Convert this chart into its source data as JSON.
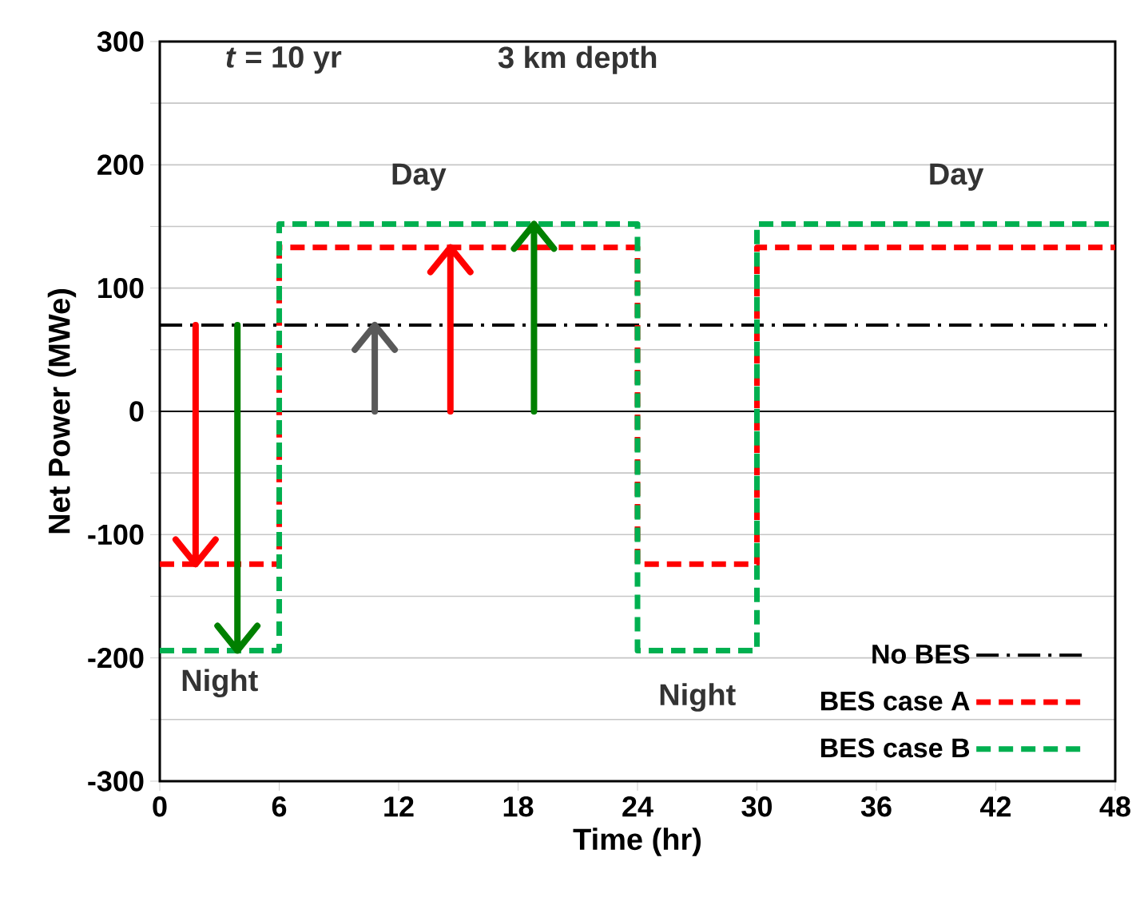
{
  "chart_data": {
    "type": "step",
    "xlabel": "Time (hr)",
    "ylabel": "Net Power (MWe)",
    "annotations": [
      "*t* = 10 yr",
      "3 km depth",
      "Day",
      "Day",
      {
        "text": "Night",
        "x": 3,
        "y": -194
      },
      "Night"
    ],
    "series": [
      {
        "name": "No BES",
        "type": "line",
        "color": "#000000",
        "line_style": "dashdot",
        "x": [
          0,
          48
        ],
        "values": [
          70,
          70
        ]
      },
      {
        "name": "BES case A",
        "color": "#ff0000",
        "line_style": "dashed",
        "x": [
          0,
          6,
          24,
          30,
          48
        ],
        "values": [
          -124,
          133,
          -124,
          133,
          133
        ]
      },
      {
        "name": "BES case B",
        "color": "#00b050",
        "line_style": "dashed",
        "x": [
          0,
          6,
          24,
          30,
          48
        ],
        "values": [
          -194,
          152,
          -194,
          152,
          152
        ]
      }
    ],
    "xlim": [
      0,
      48
    ],
    "xticks": [
      0,
      6,
      12,
      18,
      24,
      30,
      36,
      42,
      48
    ],
    "ylim": [
      -300,
      300
    ],
    "yticks": [
      -300,
      {
        "value": -250,
        "label": null
      },
      -200,
      {
        "value": -150,
        "label": null
      },
      -100,
      {
        "value": -50,
        "label": null
      },
      0,
      {
        "value": 50,
        "label": null
      },
      100,
      {
        "value": 150,
        "label": null
      },
      200,
      {
        "value": 250,
        "label": null
      },
      300
    ],
    "grid": "y",
    "legend": "bottom right",
    "marker": "none"
  }
}
